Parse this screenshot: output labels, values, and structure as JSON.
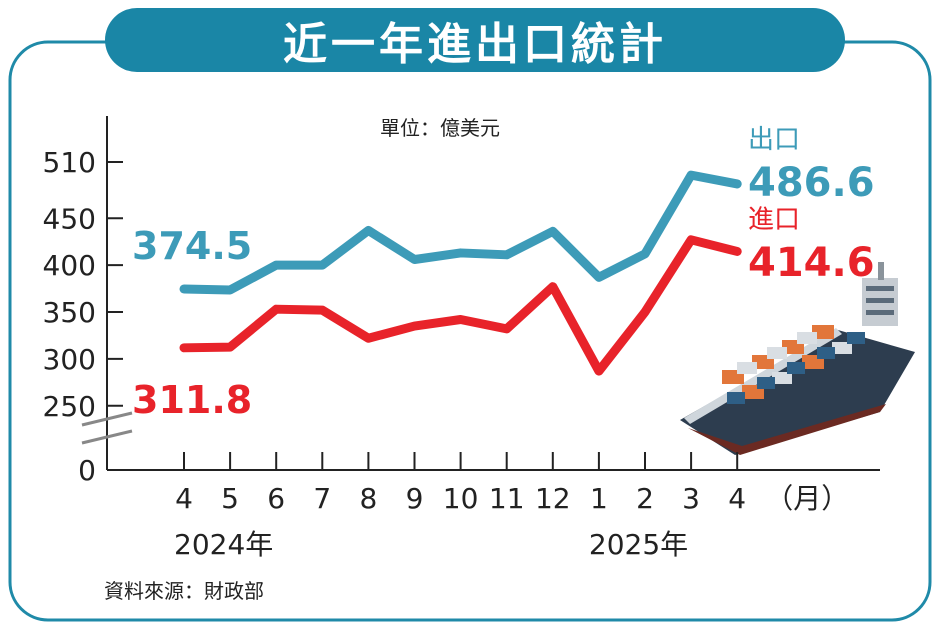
{
  "title": "近一年進出口統計",
  "unit": "單位：億美元",
  "source": "資料來源：財政部",
  "colors": {
    "export": "#3d9bb8",
    "import": "#e8232a",
    "frame": "#1f8aa8",
    "title_bg": "#1a86a6"
  },
  "chart_data": {
    "type": "line",
    "categories": [
      "4",
      "5",
      "6",
      "7",
      "8",
      "9",
      "10",
      "11",
      "12",
      "1",
      "2",
      "3",
      "4"
    ],
    "x_unit": "（月）",
    "year_labels": [
      {
        "label": "2024年",
        "at_index": 0
      },
      {
        "label": "2025年",
        "at_index": 9
      }
    ],
    "y_ticks": [
      510,
      450,
      400,
      350,
      300,
      250,
      0
    ],
    "axis_break": true,
    "ylim": [
      250,
      525
    ],
    "series": [
      {
        "name": "出口",
        "values": [
          374.5,
          373.5,
          400,
          400,
          437,
          406,
          413,
          411,
          436,
          387,
          412,
          496,
          486.6
        ],
        "first_label": "374.5",
        "last_label": "486.6"
      },
      {
        "name": "進口",
        "values": [
          311.8,
          312.5,
          353,
          352,
          322,
          335,
          342,
          332,
          377,
          287,
          350,
          427,
          414.6
        ],
        "first_label": "311.8",
        "last_label": "414.6"
      }
    ],
    "grid": false,
    "legend": "right"
  }
}
